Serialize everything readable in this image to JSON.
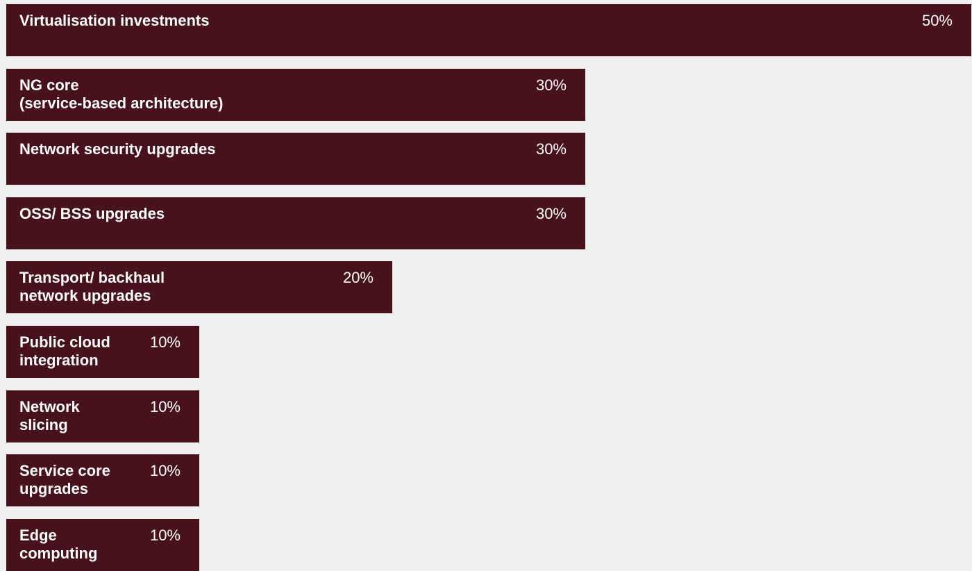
{
  "chart_data": {
    "type": "bar",
    "orientation": "horizontal",
    "categories": [
      "Virtualisation investments",
      "NG core\n(service-based architecture)",
      "Network security upgrades",
      "OSS/ BSS upgrades",
      "Transport/ backhaul\nnetwork upgrades",
      "Public cloud\nintegration",
      "Network\nslicing",
      "Service core\nupgrades",
      "Edge\ncomputing"
    ],
    "values": [
      50,
      30,
      30,
      30,
      20,
      10,
      10,
      10,
      10
    ],
    "value_labels": [
      "50%",
      "30%",
      "30%",
      "30%",
      "20%",
      "10%",
      "10%",
      "10%",
      "10%"
    ],
    "xlim": [
      0,
      50
    ],
    "grid": false,
    "legend": "none",
    "colors": {
      "bar": "#47121c",
      "text": "#ffffff",
      "background": "#f0f0f0"
    }
  }
}
